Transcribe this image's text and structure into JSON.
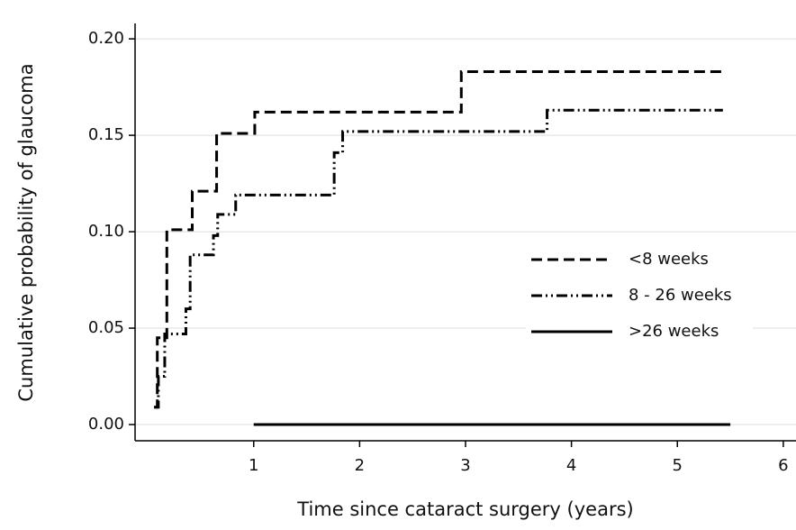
{
  "chart_data": {
    "type": "step",
    "xlabel": "Time since cataract surgery (years)",
    "ylabel": "Cumulative probability of glaucoma",
    "xlim": [
      -0.12,
      6.12
    ],
    "ylim": [
      -0.0084,
      0.208
    ],
    "xticks": [
      1,
      2,
      3,
      4,
      5,
      6
    ],
    "yticks": [
      {
        "value": 0,
        "label": "0.00"
      },
      0.05,
      {
        "value": 0.1,
        "label": "0.10"
      },
      0.15,
      {
        "value": 0.2,
        "label": "0.20"
      }
    ],
    "grid": true,
    "legend": "right",
    "series": [
      {
        "name": "<8 weeks",
        "color": "#000000",
        "dash": "dashed",
        "x": [
          0.06,
          0.09,
          0.18,
          0.42,
          0.65,
          1.01,
          2.96,
          5.43
        ],
        "values": [
          0.009,
          0.045,
          0.101,
          0.121,
          0.151,
          0.162,
          0.183,
          0.183
        ]
      },
      {
        "name": "8 - 26 weeks",
        "color": "#000000",
        "dash": "dashdotdot",
        "x": [
          0.06,
          0.1,
          0.16,
          0.36,
          0.4,
          0.62,
          0.66,
          0.83,
          1.76,
          1.84,
          3.77,
          5.43
        ],
        "values": [
          0.009,
          0.025,
          0.047,
          0.06,
          0.088,
          0.098,
          0.109,
          0.119,
          0.141,
          0.152,
          0.163,
          0.163
        ]
      },
      {
        "name": ">26 weeks",
        "color": "#000000",
        "dash": "solid",
        "x": [
          1.0,
          5.5
        ],
        "values": [
          0,
          0
        ]
      }
    ]
  }
}
